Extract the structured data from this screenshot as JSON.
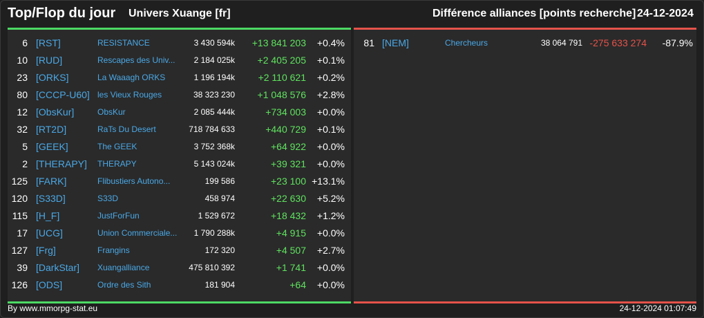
{
  "header": {
    "title": "Top/Flop du jour",
    "subtitle": "Univers Xuange [fr]",
    "right_title": "Différence alliances [points recherche]",
    "date": "24-12-2024"
  },
  "colors": {
    "accent_top": "#4cd964",
    "accent_flop": "#e5524a",
    "tag": "#4aa8e6"
  },
  "top": [
    {
      "rank": "6",
      "tag": "[RST]",
      "name": "RESISTANCE",
      "points": "3 430 594k",
      "diff": "+13 841 203",
      "pct": "+0.4%"
    },
    {
      "rank": "10",
      "tag": "[RUD]",
      "name": "Rescapes des Univ...",
      "points": "2 184 025k",
      "diff": "+2 405 205",
      "pct": "+0.1%"
    },
    {
      "rank": "23",
      "tag": "[ORKS]",
      "name": "La Waaagh ORKS",
      "points": "1 196 194k",
      "diff": "+2 110 621",
      "pct": "+0.2%"
    },
    {
      "rank": "80",
      "tag": "[CCCP-U60]",
      "name": "les Vieux Rouges",
      "points": "38 323 230",
      "diff": "+1 048 576",
      "pct": "+2.8%"
    },
    {
      "rank": "12",
      "tag": "[ObsKur]",
      "name": "ObsKur",
      "points": "2 085 444k",
      "diff": "+734 003",
      "pct": "+0.0%"
    },
    {
      "rank": "32",
      "tag": "[RT2D]",
      "name": "RaTs Du Desert",
      "points": "718 784 633",
      "diff": "+440 729",
      "pct": "+0.1%"
    },
    {
      "rank": "5",
      "tag": "[GEEK]",
      "name": "The GEEK",
      "points": "3 752 368k",
      "diff": "+64 922",
      "pct": "+0.0%"
    },
    {
      "rank": "2",
      "tag": "[THERAPY]",
      "name": "THERAPY",
      "points": "5 143 024k",
      "diff": "+39 321",
      "pct": "+0.0%"
    },
    {
      "rank": "125",
      "tag": "[FARK]",
      "name": "Flibustiers Autono...",
      "points": "199 586",
      "diff": "+23 100",
      "pct": "+13.1%"
    },
    {
      "rank": "120",
      "tag": "[S33D]",
      "name": "S33D",
      "points": "458 974",
      "diff": "+22 630",
      "pct": "+5.2%"
    },
    {
      "rank": "115",
      "tag": "[H_F]",
      "name": "JustForFun",
      "points": "1 529 672",
      "diff": "+18 432",
      "pct": "+1.2%"
    },
    {
      "rank": "17",
      "tag": "[UCG]",
      "name": "Union Commerciale...",
      "points": "1 790 288k",
      "diff": "+4 915",
      "pct": "+0.0%"
    },
    {
      "rank": "127",
      "tag": "[Frg]",
      "name": "Frangins",
      "points": "172 320",
      "diff": "+4 507",
      "pct": "+2.7%"
    },
    {
      "rank": "39",
      "tag": "[DarkStar]",
      "name": "Xuangalliance",
      "points": "475 810 392",
      "diff": "+1 741",
      "pct": "+0.0%"
    },
    {
      "rank": "126",
      "tag": "[ODS]",
      "name": "Ordre des Sith",
      "points": "181 904",
      "diff": "+64",
      "pct": "+0.0%"
    }
  ],
  "flop": [
    {
      "rank": "81",
      "tag": "[NEM]",
      "name": "Chercheurs",
      "points": "38 064 791",
      "diff": "-275 633 274",
      "pct": "-87.9%"
    }
  ],
  "footer": {
    "source": "By www.mmorpg-stat.eu",
    "timestamp": "24-12-2024 01:07:49"
  }
}
